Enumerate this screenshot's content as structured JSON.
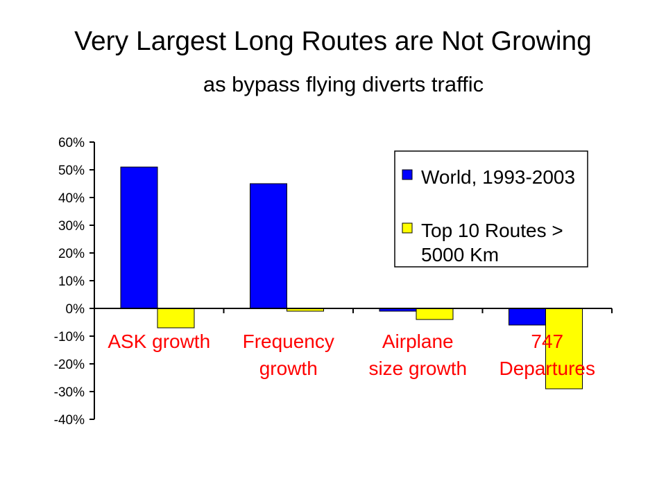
{
  "header": {
    "title": "Very Largest Long Routes are Not Growing",
    "subtitle": "as bypass flying diverts traffic"
  },
  "chart_data": {
    "type": "bar",
    "categories": [
      [
        "ASK growth"
      ],
      [
        "Frequency",
        "growth"
      ],
      [
        "Airplane",
        "size growth"
      ],
      [
        "747",
        "Departures"
      ]
    ],
    "series": [
      {
        "name": [
          "World, 1993-2003"
        ],
        "color": "#0000ff",
        "values": [
          51,
          45,
          -1,
          -6
        ]
      },
      {
        "name": [
          "Top 10 Routes >",
          "5000 Km"
        ],
        "color": "#ffff00",
        "values": [
          -7,
          -1,
          -4,
          -29
        ]
      }
    ],
    "ylim": [
      -40,
      60
    ],
    "yticks": [
      "60%",
      "50%",
      "40%",
      "30%",
      "20%",
      "10%",
      "0%",
      "-10%",
      "-20%",
      "-30%",
      "-40%"
    ],
    "category_label_color": "#ff0000",
    "grid": false,
    "legend_position": "top-right"
  }
}
